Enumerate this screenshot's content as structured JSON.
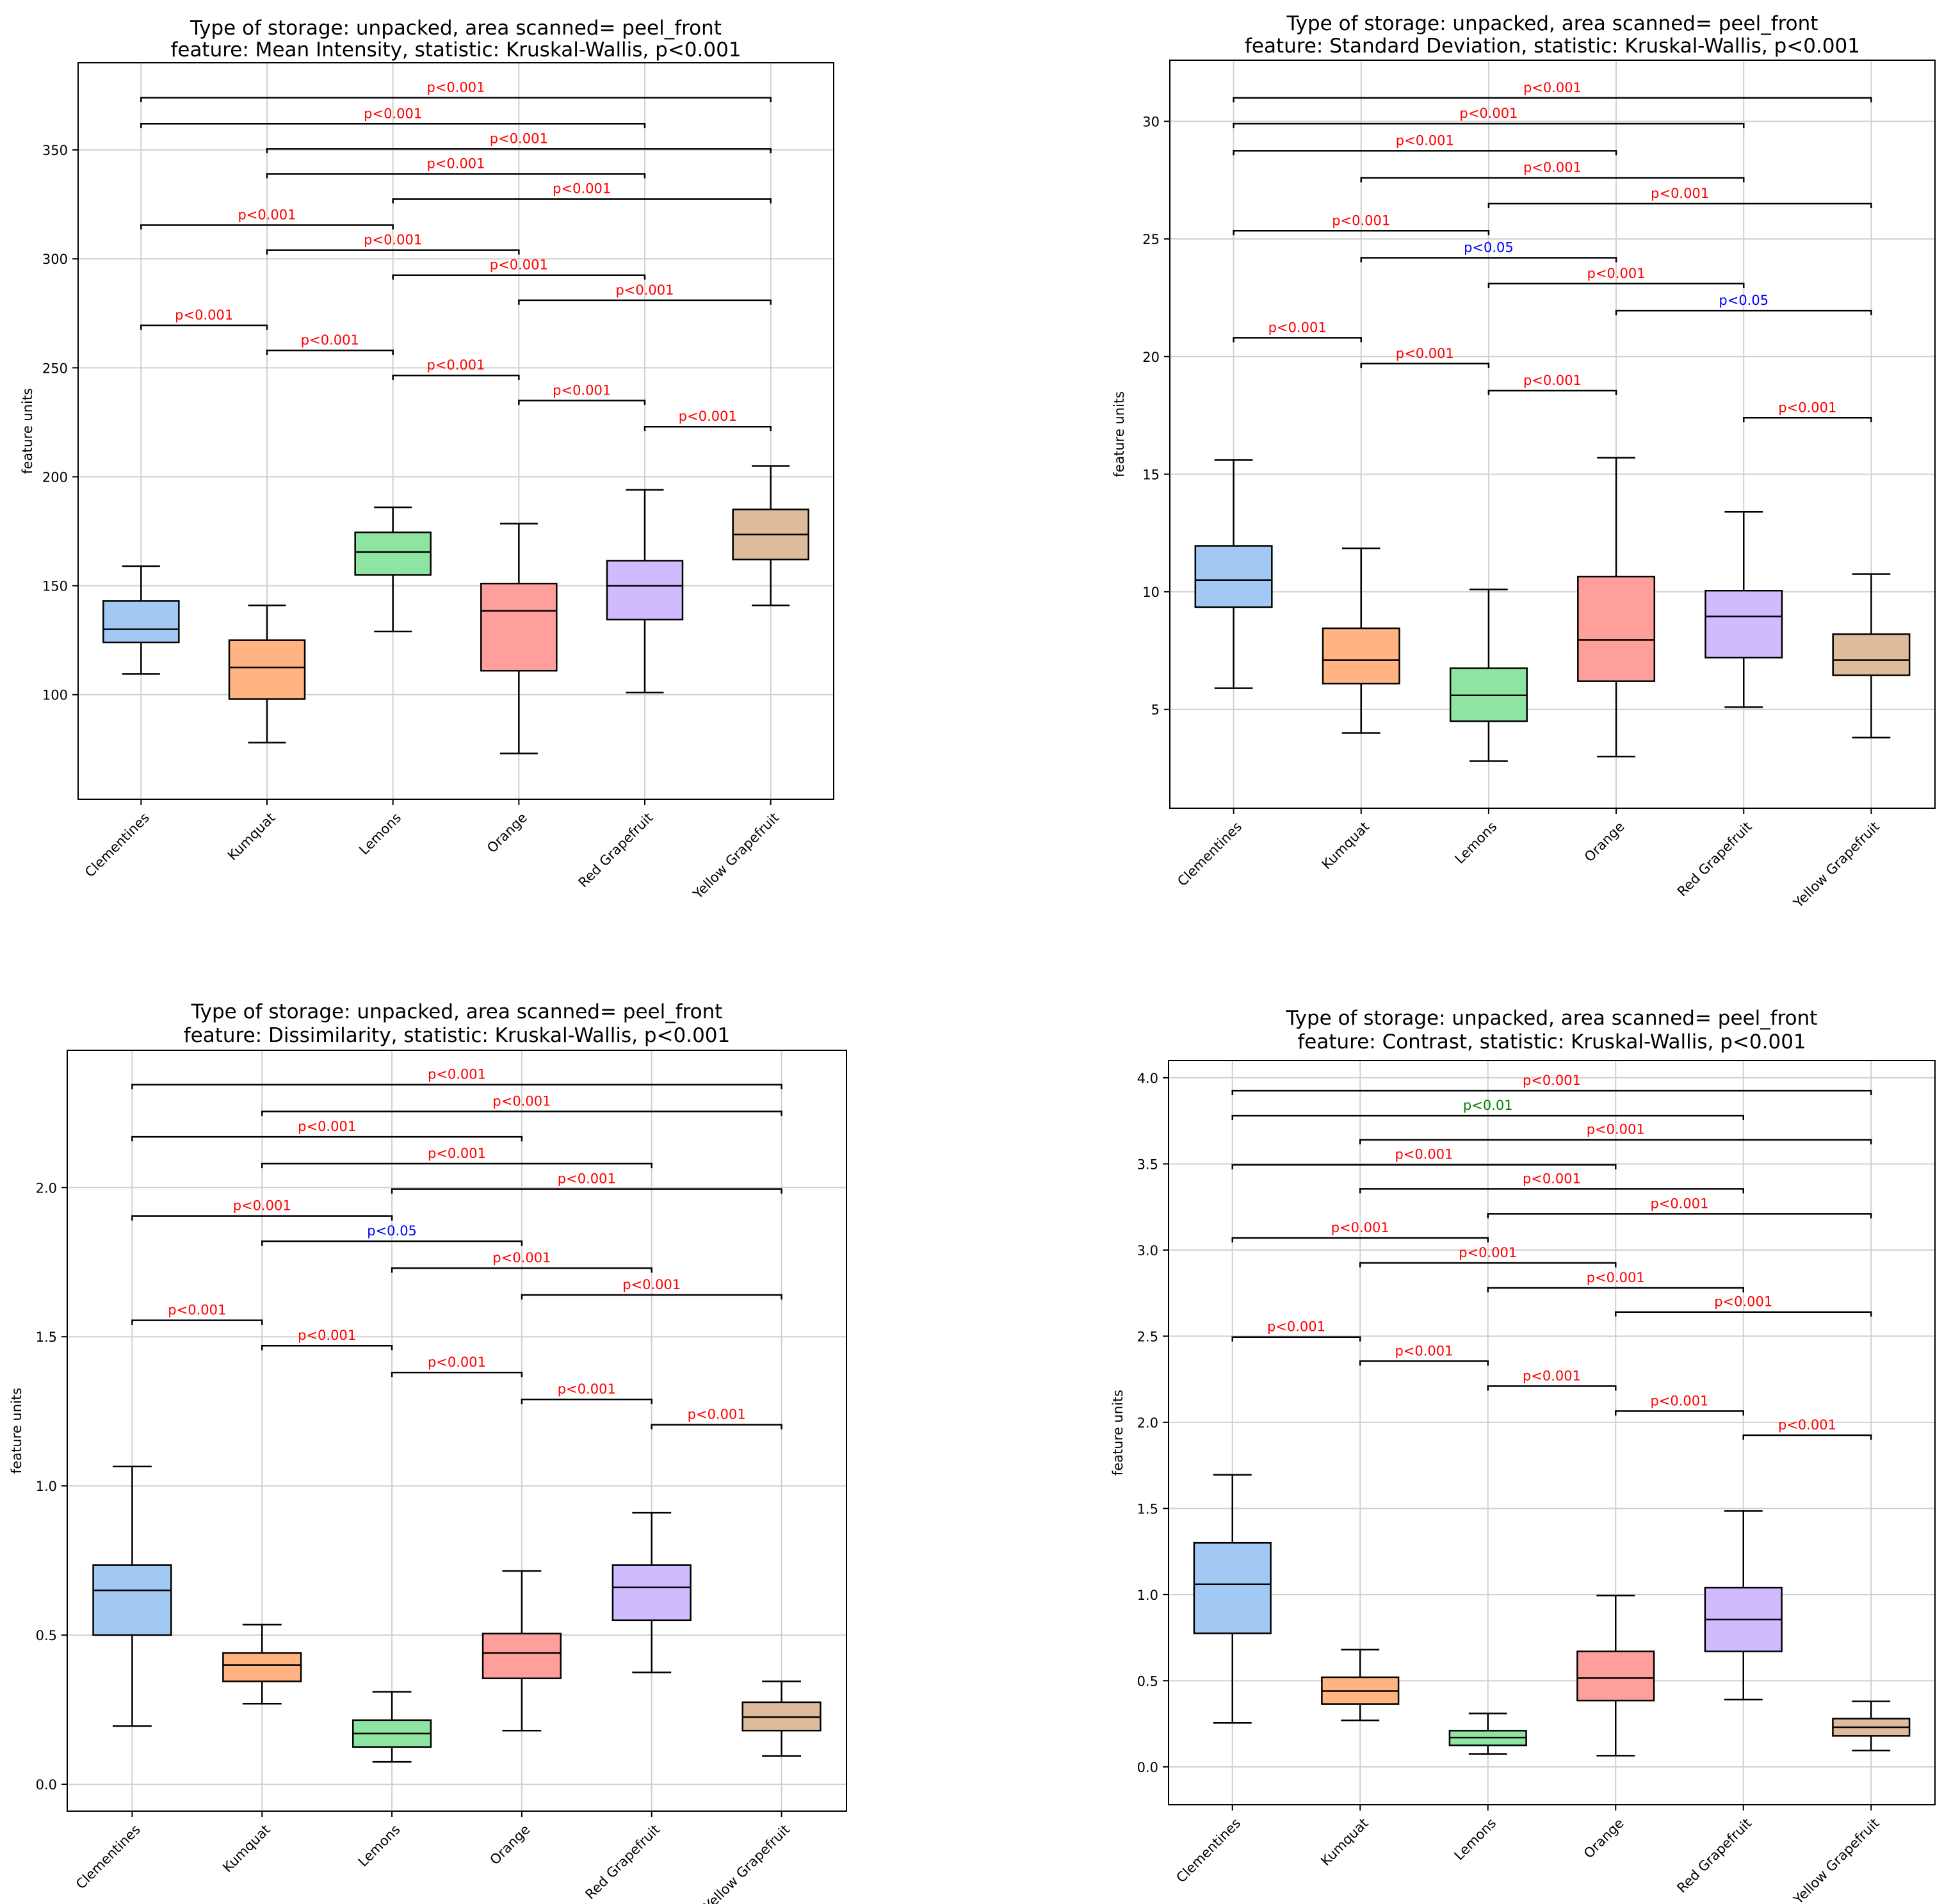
{
  "figure": {
    "ylabel": "feature units"
  },
  "colors": {
    "box_fills": [
      "#a1c9f4",
      "#ffb482",
      "#8de5a1",
      "#ff9f9b",
      "#d0bbff",
      "#debb9b"
    ],
    "sig_red": "#ff0000",
    "sig_blue": "#0000ff",
    "sig_green": "#008000",
    "grid": "#d0d0d0",
    "line": "#000000"
  },
  "chart_data": [
    {
      "type": "box",
      "title": "Type of storage: unpacked, area scanned= peel_front",
      "subtitle": "feature: Mean Intensity, statistic: Kruskal-Wallis, p<0.001",
      "xlabel": "",
      "ylabel": "feature units",
      "categories": [
        "Clementines",
        "Kumquat",
        "Lemons",
        "Orange",
        "Red Grapefruit",
        "Yellow Grapefruit"
      ],
      "ylim": [
        52,
        390
      ],
      "yticks": [
        100,
        150,
        200,
        250,
        300,
        350
      ],
      "ytick_labels": [
        "100",
        "150",
        "200",
        "250",
        "300",
        "350"
      ],
      "grid": true,
      "boxes": [
        {
          "whislo": 109.5,
          "q1": 124,
          "med": 130,
          "q3": 143,
          "whishi": 159
        },
        {
          "whislo": 78,
          "q1": 98,
          "med": 112.5,
          "q3": 125,
          "whishi": 141
        },
        {
          "whislo": 129,
          "q1": 155,
          "med": 165.5,
          "q3": 174.5,
          "whishi": 186
        },
        {
          "whislo": 73,
          "q1": 111,
          "med": 138.5,
          "q3": 151,
          "whishi": 178.5
        },
        {
          "whislo": 101,
          "q1": 134.5,
          "med": 150,
          "q3": 161.5,
          "whishi": 194
        },
        {
          "whislo": 141,
          "q1": 162,
          "med": 173.5,
          "q3": 185,
          "whishi": 205
        }
      ],
      "comparisons": [
        {
          "from": 0,
          "to": 5,
          "y": 374,
          "label": "p<0.001",
          "color": "red"
        },
        {
          "from": 0,
          "to": 4,
          "y": 362,
          "label": "p<0.001",
          "color": "red"
        },
        {
          "from": 1,
          "to": 5,
          "y": 350.5,
          "label": "p<0.001",
          "color": "red"
        },
        {
          "from": 1,
          "to": 4,
          "y": 339,
          "label": "p<0.001",
          "color": "red"
        },
        {
          "from": 2,
          "to": 5,
          "y": 327.5,
          "label": "p<0.001",
          "color": "red"
        },
        {
          "from": 0,
          "to": 2,
          "y": 315.5,
          "label": "p<0.001",
          "color": "red"
        },
        {
          "from": 1,
          "to": 3,
          "y": 304,
          "label": "p<0.001",
          "color": "red"
        },
        {
          "from": 2,
          "to": 4,
          "y": 292.5,
          "label": "p<0.001",
          "color": "red"
        },
        {
          "from": 3,
          "to": 5,
          "y": 281,
          "label": "p<0.001",
          "color": "red"
        },
        {
          "from": 0,
          "to": 1,
          "y": 269.5,
          "label": "p<0.001",
          "color": "red"
        },
        {
          "from": 1,
          "to": 2,
          "y": 258,
          "label": "p<0.001",
          "color": "red"
        },
        {
          "from": 2,
          "to": 3,
          "y": 246.5,
          "label": "p<0.001",
          "color": "red"
        },
        {
          "from": 3,
          "to": 4,
          "y": 235,
          "label": "p<0.001",
          "color": "red"
        },
        {
          "from": 4,
          "to": 5,
          "y": 223,
          "label": "p<0.001",
          "color": "red"
        }
      ]
    },
    {
      "type": "box",
      "title": "Type of storage: unpacked, area scanned= peel_front",
      "subtitle": "feature: Standard Deviation, statistic: Kruskal-Wallis, p<0.001",
      "xlabel": "",
      "ylabel": "feature units",
      "categories": [
        "Clementines",
        "Kumquat",
        "Lemons",
        "Orange",
        "Red Grapefruit",
        "Yellow Grapefruit"
      ],
      "ylim": [
        0.8,
        32.6
      ],
      "yticks": [
        5,
        10,
        15,
        20,
        25,
        30
      ],
      "ytick_labels": [
        "5",
        "10",
        "15",
        "20",
        "25",
        "30"
      ],
      "grid": true,
      "boxes": [
        {
          "whislo": 5.9,
          "q1": 9.35,
          "med": 10.5,
          "q3": 11.95,
          "whishi": 15.6
        },
        {
          "whislo": 4.0,
          "q1": 6.1,
          "med": 7.1,
          "q3": 8.45,
          "whishi": 11.85
        },
        {
          "whislo": 2.8,
          "q1": 4.5,
          "med": 5.6,
          "q3": 6.75,
          "whishi": 10.1
        },
        {
          "whislo": 3.0,
          "q1": 6.2,
          "med": 7.95,
          "q3": 10.65,
          "whishi": 15.7
        },
        {
          "whislo": 5.1,
          "q1": 7.2,
          "med": 8.95,
          "q3": 10.05,
          "whishi": 13.4
        },
        {
          "whislo": 3.8,
          "q1": 6.45,
          "med": 7.1,
          "q3": 8.2,
          "whishi": 10.75
        }
      ],
      "comparisons": [
        {
          "from": 0,
          "to": 5,
          "y": 31.0,
          "label": "p<0.001",
          "color": "red"
        },
        {
          "from": 0,
          "to": 4,
          "y": 29.9,
          "label": "p<0.001",
          "color": "red"
        },
        {
          "from": 0,
          "to": 3,
          "y": 28.75,
          "label": "p<0.001",
          "color": "red"
        },
        {
          "from": 1,
          "to": 4,
          "y": 27.6,
          "label": "p<0.001",
          "color": "red"
        },
        {
          "from": 2,
          "to": 5,
          "y": 26.5,
          "label": "p<0.001",
          "color": "red"
        },
        {
          "from": 0,
          "to": 2,
          "y": 25.35,
          "label": "p<0.001",
          "color": "red"
        },
        {
          "from": 1,
          "to": 3,
          "y": 24.2,
          "label": "p<0.05",
          "color": "blue"
        },
        {
          "from": 2,
          "to": 4,
          "y": 23.1,
          "label": "p<0.001",
          "color": "red"
        },
        {
          "from": 3,
          "to": 5,
          "y": 21.95,
          "label": "p<0.05",
          "color": "blue"
        },
        {
          "from": 0,
          "to": 1,
          "y": 20.8,
          "label": "p<0.001",
          "color": "red"
        },
        {
          "from": 1,
          "to": 2,
          "y": 19.7,
          "label": "p<0.001",
          "color": "red"
        },
        {
          "from": 2,
          "to": 3,
          "y": 18.55,
          "label": "p<0.001",
          "color": "red"
        },
        {
          "from": 4,
          "to": 5,
          "y": 17.4,
          "label": "p<0.001",
          "color": "red"
        }
      ]
    },
    {
      "type": "box",
      "title": "Type of storage: unpacked, area scanned= peel_front",
      "subtitle": "feature: Dissimilarity, statistic: Kruskal-Wallis, p<0.001",
      "xlabel": "",
      "ylabel": "feature units",
      "categories": [
        "Clementines",
        "Kumquat",
        "Lemons",
        "Orange",
        "Red Grapefruit",
        "Yellow Grapefruit"
      ],
      "ylim": [
        -0.09,
        2.46
      ],
      "yticks": [
        0.0,
        0.5,
        1.0,
        1.5,
        2.0
      ],
      "ytick_labels": [
        "0.0",
        "0.5",
        "1.0",
        "1.5",
        "2.0"
      ],
      "grid": true,
      "boxes": [
        {
          "whislo": 0.195,
          "q1": 0.5,
          "med": 0.65,
          "q3": 0.735,
          "whishi": 1.065
        },
        {
          "whislo": 0.27,
          "q1": 0.345,
          "med": 0.4,
          "q3": 0.44,
          "whishi": 0.535
        },
        {
          "whislo": 0.075,
          "q1": 0.125,
          "med": 0.17,
          "q3": 0.215,
          "whishi": 0.31
        },
        {
          "whislo": 0.18,
          "q1": 0.355,
          "med": 0.44,
          "q3": 0.505,
          "whishi": 0.715
        },
        {
          "whislo": 0.375,
          "q1": 0.55,
          "med": 0.66,
          "q3": 0.735,
          "whishi": 0.91
        },
        {
          "whislo": 0.095,
          "q1": 0.18,
          "med": 0.225,
          "q3": 0.275,
          "whishi": 0.345
        }
      ],
      "comparisons": [
        {
          "from": 0,
          "to": 5,
          "y": 2.345,
          "label": "p<0.001",
          "color": "red"
        },
        {
          "from": 1,
          "to": 5,
          "y": 2.255,
          "label": "p<0.001",
          "color": "red"
        },
        {
          "from": 0,
          "to": 3,
          "y": 2.17,
          "label": "p<0.001",
          "color": "red"
        },
        {
          "from": 1,
          "to": 4,
          "y": 2.08,
          "label": "p<0.001",
          "color": "red"
        },
        {
          "from": 2,
          "to": 5,
          "y": 1.995,
          "label": "p<0.001",
          "color": "red"
        },
        {
          "from": 0,
          "to": 2,
          "y": 1.905,
          "label": "p<0.001",
          "color": "red"
        },
        {
          "from": 1,
          "to": 3,
          "y": 1.82,
          "label": "p<0.05",
          "color": "blue"
        },
        {
          "from": 2,
          "to": 4,
          "y": 1.73,
          "label": "p<0.001",
          "color": "red"
        },
        {
          "from": 3,
          "to": 5,
          "y": 1.64,
          "label": "p<0.001",
          "color": "red"
        },
        {
          "from": 0,
          "to": 1,
          "y": 1.555,
          "label": "p<0.001",
          "color": "red"
        },
        {
          "from": 1,
          "to": 2,
          "y": 1.47,
          "label": "p<0.001",
          "color": "red"
        },
        {
          "from": 2,
          "to": 3,
          "y": 1.38,
          "label": "p<0.001",
          "color": "red"
        },
        {
          "from": 3,
          "to": 4,
          "y": 1.29,
          "label": "p<0.001",
          "color": "red"
        },
        {
          "from": 4,
          "to": 5,
          "y": 1.205,
          "label": "p<0.001",
          "color": "red"
        }
      ]
    },
    {
      "type": "box",
      "title": "Type of storage: unpacked, area scanned= peel_front",
      "subtitle": "feature: Contrast, statistic: Kruskal-Wallis, p<0.001",
      "xlabel": "",
      "ylabel": "feature units",
      "categories": [
        "Clementines",
        "Kumquat",
        "Lemons",
        "Orange",
        "Red Grapefruit",
        "Yellow Grapefruit"
      ],
      "ylim": [
        -0.22,
        4.1
      ],
      "yticks": [
        0.0,
        0.5,
        1.0,
        1.5,
        2.0,
        2.5,
        3.0,
        3.5,
        4.0
      ],
      "ytick_labels": [
        "0.0",
        "0.5",
        "1.0",
        "1.5",
        "2.0",
        "2.5",
        "3.0",
        "3.5",
        "4.0"
      ],
      "grid": true,
      "boxes": [
        {
          "whislo": 0.255,
          "q1": 0.775,
          "med": 1.06,
          "q3": 1.3,
          "whishi": 1.695
        },
        {
          "whislo": 0.27,
          "q1": 0.365,
          "med": 0.44,
          "q3": 0.52,
          "whishi": 0.68
        },
        {
          "whislo": 0.075,
          "q1": 0.125,
          "med": 0.17,
          "q3": 0.21,
          "whishi": 0.31
        },
        {
          "whislo": 0.065,
          "q1": 0.385,
          "med": 0.515,
          "q3": 0.67,
          "whishi": 0.995
        },
        {
          "whislo": 0.39,
          "q1": 0.67,
          "med": 0.855,
          "q3": 1.04,
          "whishi": 1.485
        },
        {
          "whislo": 0.095,
          "q1": 0.18,
          "med": 0.23,
          "q3": 0.28,
          "whishi": 0.38
        }
      ],
      "comparisons": [
        {
          "from": 0,
          "to": 5,
          "y": 3.925,
          "label": "p<0.001",
          "color": "red"
        },
        {
          "from": 0,
          "to": 4,
          "y": 3.78,
          "label": "p<0.01",
          "color": "green"
        },
        {
          "from": 1,
          "to": 5,
          "y": 3.64,
          "label": "p<0.001",
          "color": "red"
        },
        {
          "from": 0,
          "to": 3,
          "y": 3.495,
          "label": "p<0.001",
          "color": "red"
        },
        {
          "from": 1,
          "to": 4,
          "y": 3.355,
          "label": "p<0.001",
          "color": "red"
        },
        {
          "from": 2,
          "to": 5,
          "y": 3.21,
          "label": "p<0.001",
          "color": "red"
        },
        {
          "from": 0,
          "to": 2,
          "y": 3.07,
          "label": "p<0.001",
          "color": "red"
        },
        {
          "from": 1,
          "to": 3,
          "y": 2.925,
          "label": "p<0.001",
          "color": "red"
        },
        {
          "from": 2,
          "to": 4,
          "y": 2.78,
          "label": "p<0.001",
          "color": "red"
        },
        {
          "from": 3,
          "to": 5,
          "y": 2.64,
          "label": "p<0.001",
          "color": "red"
        },
        {
          "from": 0,
          "to": 1,
          "y": 2.495,
          "label": "p<0.001",
          "color": "red"
        },
        {
          "from": 1,
          "to": 2,
          "y": 2.355,
          "label": "p<0.001",
          "color": "red"
        },
        {
          "from": 2,
          "to": 3,
          "y": 2.21,
          "label": "p<0.001",
          "color": "red"
        },
        {
          "from": 3,
          "to": 4,
          "y": 2.065,
          "label": "p<0.001",
          "color": "red"
        },
        {
          "from": 4,
          "to": 5,
          "y": 1.925,
          "label": "p<0.001",
          "color": "red"
        }
      ]
    }
  ]
}
